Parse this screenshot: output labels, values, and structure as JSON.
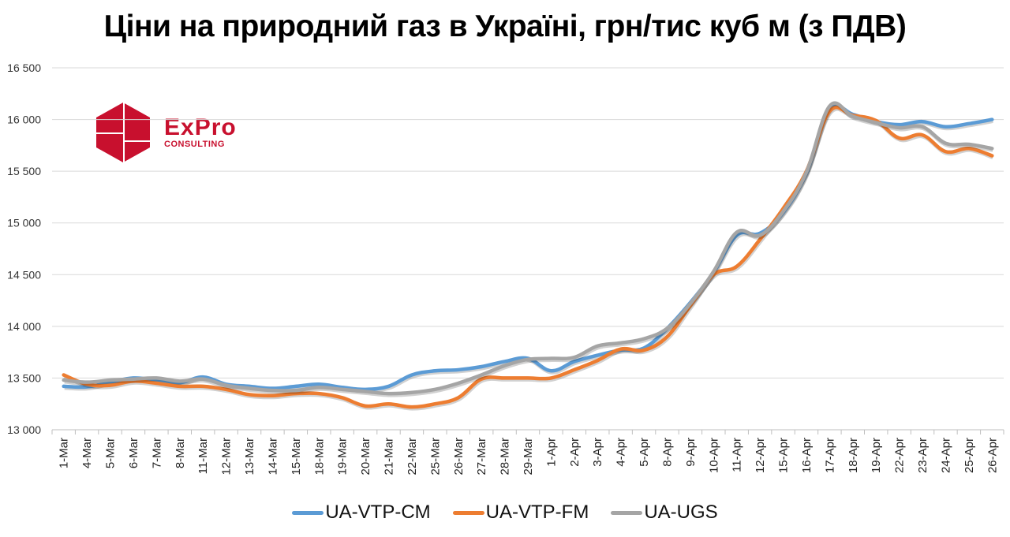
{
  "title": "Ціни на природний газ в Україні, грн/тис куб м (з ПДВ)",
  "logo": {
    "name": "ExPro",
    "subtitle": "CONSULTING",
    "color": "#c8102e"
  },
  "legend": [
    {
      "label": "UA-VTP-CM",
      "color": "#5b9bd5"
    },
    {
      "label": "UA-VTP-FM",
      "color": "#ed7d31"
    },
    {
      "label": "UA-UGS",
      "color": "#a5a5a5"
    }
  ],
  "chart_data": {
    "type": "line",
    "title": "Ціни на природний газ в Україні, грн/тис куб м (з ПДВ)",
    "xlabel": "",
    "ylabel": "",
    "ylim": [
      13000,
      16500
    ],
    "yticks": [
      "13 000",
      "13 500",
      "14 000",
      "14 500",
      "15 000",
      "15 500",
      "16 000",
      "16 500"
    ],
    "grid": true,
    "legend_position": "bottom",
    "categories": [
      "1-Mar",
      "4-Mar",
      "5-Mar",
      "6-Mar",
      "7-Mar",
      "8-Mar",
      "11-Mar",
      "12-Mar",
      "13-Mar",
      "14-Mar",
      "15-Mar",
      "18-Mar",
      "19-Mar",
      "20-Mar",
      "21-Mar",
      "22-Mar",
      "25-Mar",
      "26-Mar",
      "27-Mar",
      "28-Mar",
      "29-Mar",
      "1-Apr",
      "2-Apr",
      "3-Apr",
      "4-Apr",
      "5-Apr",
      "8-Apr",
      "9-Apr",
      "10-Apr",
      "11-Apr",
      "12-Apr",
      "15-Apr",
      "16-Apr",
      "17-Apr",
      "18-Apr",
      "19-Apr",
      "22-Apr",
      "23-Apr",
      "24-Apr",
      "25-Apr",
      "26-Apr"
    ],
    "series": [
      {
        "name": "UA-VTP-CM",
        "color": "#5b9bd5",
        "values": [
          13420,
          13415,
          13460,
          13500,
          13480,
          13455,
          13510,
          13440,
          13420,
          13400,
          13420,
          13440,
          13410,
          13390,
          13420,
          13530,
          13570,
          13580,
          13610,
          13660,
          13690,
          13570,
          13660,
          13720,
          13770,
          13790,
          13980,
          14230,
          14520,
          14880,
          14900,
          15100,
          15480,
          16100,
          16050,
          15980,
          15950,
          15980,
          15930,
          15960,
          16000
        ]
      },
      {
        "name": "UA-VTP-FM",
        "color": "#ed7d31",
        "values": [
          13530,
          13440,
          13430,
          13470,
          13450,
          13420,
          13420,
          13390,
          13340,
          13330,
          13350,
          13350,
          13310,
          13230,
          13250,
          13220,
          13250,
          13310,
          13490,
          13500,
          13500,
          13500,
          13580,
          13670,
          13780,
          13770,
          13900,
          14200,
          14500,
          14580,
          14840,
          15140,
          15500,
          16080,
          16040,
          15990,
          15820,
          15850,
          15690,
          15720,
          15650
        ]
      },
      {
        "name": "UA-UGS",
        "color": "#a5a5a5",
        "values": [
          13480,
          13460,
          13480,
          13490,
          13500,
          13470,
          13490,
          13430,
          13400,
          13380,
          13380,
          13410,
          13390,
          13370,
          13350,
          13360,
          13390,
          13450,
          13530,
          13620,
          13680,
          13690,
          13700,
          13810,
          13840,
          13880,
          13980,
          14220,
          14530,
          14910,
          14880,
          15110,
          15490,
          16130,
          16030,
          15970,
          15920,
          15930,
          15770,
          15760,
          15720
        ]
      }
    ]
  }
}
